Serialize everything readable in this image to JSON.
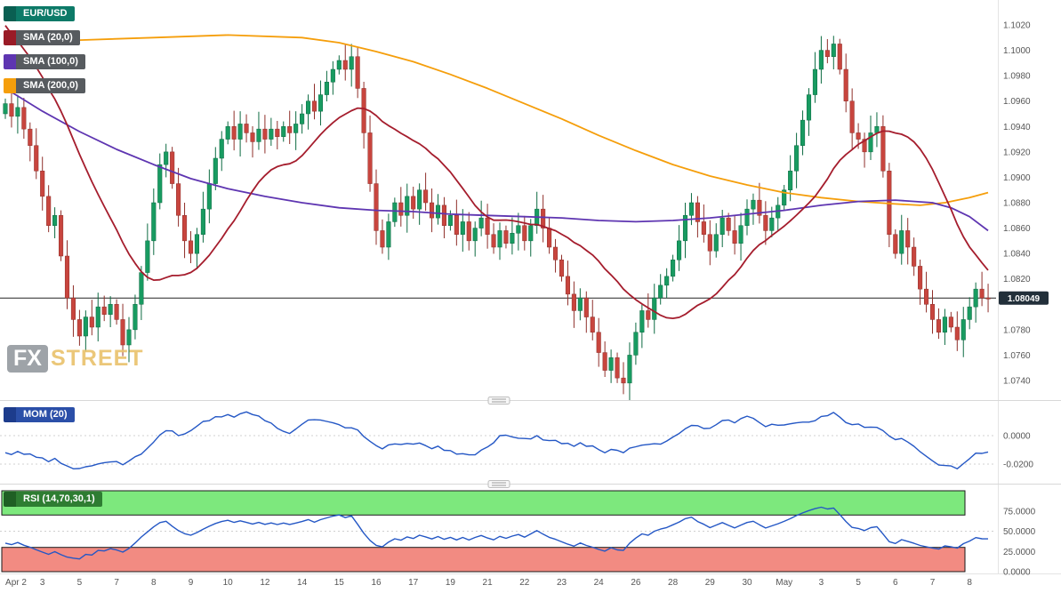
{
  "legend": {
    "symbol": {
      "label": "EUR/USD",
      "bg": "#0d7a68",
      "swatch": "#0a5f52"
    },
    "sma20": {
      "label": "SMA (20,0)",
      "bg": "#575b5f",
      "swatch": "#9a1b26"
    },
    "sma100": {
      "label": "SMA (100,0)",
      "bg": "#575b5f",
      "swatch": "#5e35b1"
    },
    "sma200": {
      "label": "SMA (200,0)",
      "bg": "#575b5f",
      "swatch": "#f59e0b"
    },
    "mom": {
      "label": "MOM (20)",
      "bg": "#2b4fa8",
      "swatch": "#1d3c8c"
    },
    "rsi": {
      "label": "RSI (14,70,30,1)",
      "bg": "#2e7d32",
      "swatch": "#1f5f24"
    }
  },
  "watermark": {
    "fx": "FX",
    "street": "STREET"
  },
  "price_badge": "1.08049",
  "colors": {
    "candle_up": "#189b61",
    "candle_up_stroke": "#0d6b42",
    "candle_down": "#c8453e",
    "candle_down_stroke": "#8f2f2a",
    "sma20": "#a51d2d",
    "sma100": "#5e35b1",
    "sma200": "#f59e0b",
    "mom_line": "#2457c5",
    "rsi_line": "#2457c5",
    "overbought_fill": "#7de87d",
    "oversold_fill": "#f28b82",
    "zone_stroke": "#1a1a1a",
    "badge_bg": "#222f3a",
    "last_price_line": "#222222",
    "axis_text": "#555555"
  },
  "chart_data": {
    "type": "candlestick",
    "symbol": "EUR/USD",
    "last_price": 1.08049,
    "first_open": 1.095,
    "price_axis": {
      "min": 1.074,
      "max": 1.102,
      "tick_labels": [
        "1.1020",
        "1.1000",
        "1.0980",
        "1.0960",
        "1.0940",
        "1.0920",
        "1.0900",
        "1.0880",
        "1.0860",
        "1.0840",
        "1.0820",
        "1.0780",
        "1.0760",
        "1.0740"
      ]
    },
    "mom_axis": {
      "ticks": [
        {
          "label": "0.0000",
          "value": 0
        },
        {
          "label": "-0.0200",
          "value": -0.02
        }
      ]
    },
    "rsi_axis": {
      "overbought": 70,
      "oversold": 30,
      "ticks": [
        {
          "label": "75.0000",
          "value": 75
        },
        {
          "label": "50.0000",
          "value": 50
        },
        {
          "label": "25.0000",
          "value": 25
        },
        {
          "label": "0.0000",
          "value": 0
        }
      ]
    },
    "x_labels": [
      {
        "label": "Apr 2",
        "i": 0
      },
      {
        "label": "3",
        "i": 6
      },
      {
        "label": "5",
        "i": 12
      },
      {
        "label": "7",
        "i": 18
      },
      {
        "label": "8",
        "i": 24
      },
      {
        "label": "9",
        "i": 30
      },
      {
        "label": "10",
        "i": 36
      },
      {
        "label": "12",
        "i": 42
      },
      {
        "label": "14",
        "i": 48
      },
      {
        "label": "15",
        "i": 54
      },
      {
        "label": "16",
        "i": 60
      },
      {
        "label": "17",
        "i": 66
      },
      {
        "label": "19",
        "i": 72
      },
      {
        "label": "21",
        "i": 78
      },
      {
        "label": "22",
        "i": 84
      },
      {
        "label": "23",
        "i": 90
      },
      {
        "label": "24",
        "i": 96
      },
      {
        "label": "26",
        "i": 102
      },
      {
        "label": "28",
        "i": 108
      },
      {
        "label": "29",
        "i": 114
      },
      {
        "label": "30",
        "i": 120
      },
      {
        "label": "May",
        "i": 126
      },
      {
        "label": "3",
        "i": 132
      },
      {
        "label": "5",
        "i": 138
      },
      {
        "label": "6",
        "i": 144
      },
      {
        "label": "7",
        "i": 150
      },
      {
        "label": "8",
        "i": 156
      }
    ],
    "indicators": {
      "sma20_period": 20,
      "mom_period": 20,
      "rsi_period": 14
    },
    "closes": [
      1.0958,
      1.0948,
      1.0955,
      1.0938,
      1.0925,
      1.0905,
      1.0885,
      1.0862,
      1.087,
      1.0838,
      1.0805,
      1.0788,
      1.0775,
      1.079,
      1.0782,
      1.0798,
      1.0792,
      1.08,
      1.0788,
      1.0768,
      1.078,
      1.08,
      1.0825,
      1.085,
      1.088,
      1.091,
      1.092,
      1.0895,
      1.087,
      1.085,
      1.084,
      1.0855,
      1.0875,
      1.0895,
      1.0915,
      1.093,
      1.094,
      1.093,
      1.0942,
      1.0935,
      1.0928,
      1.0938,
      1.093,
      1.0938,
      1.0932,
      1.094,
      1.0935,
      1.0942,
      1.095,
      1.096,
      1.0952,
      1.0965,
      1.0975,
      1.0985,
      1.0992,
      1.0985,
      1.0995,
      1.097,
      1.0935,
      1.0895,
      1.0858,
      1.0845,
      1.0865,
      1.088,
      1.087,
      1.0885,
      1.0875,
      1.089,
      1.088,
      1.0868,
      1.0878,
      1.0862,
      1.087,
      1.0855,
      1.0865,
      1.085,
      1.086,
      1.0868,
      1.0855,
      1.0845,
      1.0858,
      1.0848,
      1.0856,
      1.0862,
      1.085,
      1.0862,
      1.0875,
      1.086,
      1.0845,
      1.0835,
      1.0822,
      1.0808,
      1.0795,
      1.0805,
      1.079,
      1.0778,
      1.0762,
      1.0748,
      1.0758,
      1.0742,
      1.0738,
      1.076,
      1.0778,
      1.0795,
      1.0788,
      1.0805,
      1.0815,
      1.0822,
      1.0835,
      1.085,
      1.087,
      1.088,
      1.0865,
      1.0855,
      1.0842,
      1.0855,
      1.0868,
      1.0858,
      1.0848,
      1.0862,
      1.0875,
      1.0882,
      1.087,
      1.0858,
      1.0868,
      1.0878,
      1.089,
      1.0905,
      1.0925,
      1.0945,
      1.0965,
      1.0985,
      1.1,
      1.0995,
      1.1005,
      1.0985,
      1.096,
      1.0935,
      1.093,
      1.092,
      1.0935,
      1.094,
      1.0905,
      1.0855,
      1.084,
      1.0858,
      1.0845,
      1.083,
      1.0812,
      1.08,
      1.0788,
      1.0778,
      1.079,
      1.0782,
      1.0772,
      1.0788,
      1.0798,
      1.0812,
      1.0805,
      1.08049
    ],
    "sma100_waypoints": [
      [
        0,
        1.097
      ],
      [
        6,
        1.0952
      ],
      [
        12,
        1.0936
      ],
      [
        18,
        1.0922
      ],
      [
        24,
        1.091
      ],
      [
        30,
        1.0899
      ],
      [
        36,
        1.0891
      ],
      [
        42,
        1.0885
      ],
      [
        48,
        1.088
      ],
      [
        54,
        1.0876
      ],
      [
        60,
        1.0874
      ],
      [
        66,
        1.0873
      ],
      [
        72,
        1.0871
      ],
      [
        78,
        1.087
      ],
      [
        84,
        1.0869
      ],
      [
        90,
        1.0868
      ],
      [
        96,
        1.0866
      ],
      [
        102,
        1.0865
      ],
      [
        108,
        1.0866
      ],
      [
        114,
        1.0868
      ],
      [
        120,
        1.0871
      ],
      [
        126,
        1.0874
      ],
      [
        132,
        1.0878
      ],
      [
        138,
        1.0881
      ],
      [
        144,
        1.0882
      ],
      [
        150,
        1.088
      ],
      [
        153,
        1.0876
      ],
      [
        156,
        1.0869
      ],
      [
        159,
        1.0858
      ]
    ],
    "sma200_waypoints": [
      [
        0,
        1.1006
      ],
      [
        12,
        1.1008
      ],
      [
        24,
        1.101
      ],
      [
        36,
        1.1012
      ],
      [
        48,
        1.101
      ],
      [
        54,
        1.1006
      ],
      [
        60,
        1.0999
      ],
      [
        66,
        1.0991
      ],
      [
        72,
        1.0981
      ],
      [
        78,
        1.097
      ],
      [
        84,
        1.0958
      ],
      [
        90,
        1.0946
      ],
      [
        96,
        1.0933
      ],
      [
        102,
        1.0921
      ],
      [
        108,
        1.091
      ],
      [
        114,
        1.0901
      ],
      [
        120,
        1.0894
      ],
      [
        126,
        1.0888
      ],
      [
        132,
        1.0884
      ],
      [
        138,
        1.0881
      ],
      [
        144,
        1.0879
      ],
      [
        148,
        1.0878
      ],
      [
        152,
        1.088
      ],
      [
        156,
        1.0884
      ],
      [
        159,
        1.0888
      ]
    ]
  }
}
